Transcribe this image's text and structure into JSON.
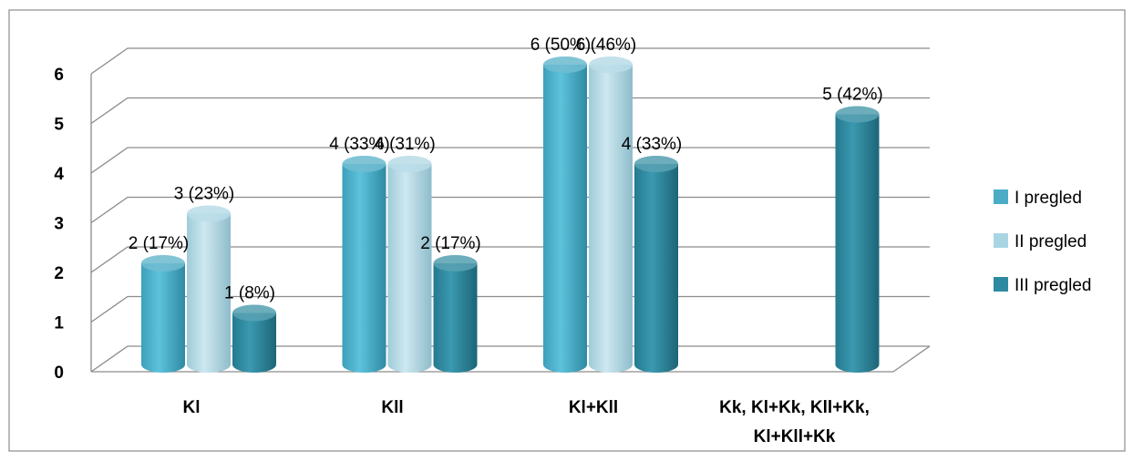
{
  "chart_data": {
    "type": "bar",
    "categories": [
      "Kl",
      "Kll",
      "Kl+Kll",
      "Kk, Kl+Kk, Kll+Kk,\nKl+Kll+Kk"
    ],
    "series": [
      {
        "name": "I pregled",
        "values": [
          2,
          4,
          6,
          null
        ],
        "labels": [
          "2 (17%)",
          "4 (33%)",
          "6 (50%)",
          ""
        ],
        "color": "#4bacc6"
      },
      {
        "name": "II pregled",
        "values": [
          3,
          4,
          6,
          null
        ],
        "labels": [
          "3 (23%)",
          "4 (31%)",
          "6 (46%)",
          ""
        ],
        "color": "#a9d5e3"
      },
      {
        "name": "III pregled",
        "values": [
          1,
          2,
          4,
          5
        ],
        "labels": [
          "1 (8%)",
          "2 (17%)",
          "4 (33%)",
          "5 (42%)"
        ],
        "color": "#2e8aa0"
      }
    ],
    "yticks": [
      0,
      1,
      2,
      3,
      4,
      5,
      6
    ],
    "ylim": [
      0,
      6
    ],
    "grid": true,
    "legend_position": "right",
    "bar_shape": "cylinder-3d",
    "title": "",
    "xlabel": "",
    "ylabel": ""
  }
}
